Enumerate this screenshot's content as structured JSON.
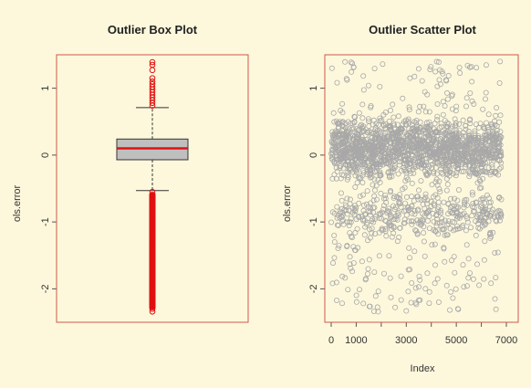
{
  "colors": {
    "background": "#fdf8dc",
    "frame": "#d0584a",
    "box_fill": "#bfbfbf",
    "median": "#e01010",
    "outlier": "#e01010",
    "scatter_point": "#a8a8a8"
  },
  "chart_data": [
    {
      "type": "box",
      "title": "Outlier Box Plot",
      "xlabel": "",
      "ylabel": "ols.error",
      "ylim": [
        -2.5,
        1.5
      ],
      "yticks": [
        -2,
        -1,
        0,
        1
      ],
      "ytick_labels": [
        "-2",
        "-1",
        "0",
        "1"
      ],
      "summary": {
        "min_whisker": -0.53,
        "q1": -0.07,
        "median": 0.1,
        "q3": 0.24,
        "max_whisker": 0.71
      },
      "outliers_low": [
        -0.55,
        -0.6,
        -0.65,
        -0.7,
        -0.75,
        -0.8,
        -0.85,
        -0.9,
        -0.95,
        -1.0,
        -1.05,
        -1.1,
        -1.15,
        -1.2,
        -1.25,
        -1.3,
        -1.35,
        -1.4,
        -1.45,
        -1.5,
        -1.55,
        -1.6,
        -1.65,
        -1.7,
        -1.75,
        -1.8,
        -1.85,
        -1.9,
        -1.95,
        -2.0,
        -2.05,
        -2.1,
        -2.15,
        -2.2,
        -2.25,
        -2.3,
        -2.34
      ],
      "outliers_high": [
        0.74,
        0.78,
        0.82,
        0.86,
        0.9,
        0.94,
        0.98,
        1.02,
        1.06,
        1.1,
        1.15,
        1.27,
        1.35,
        1.39
      ]
    },
    {
      "type": "scatter",
      "title": "Outlier Scatter Plot",
      "xlabel": "Index",
      "ylabel": "ols.error",
      "xlim": [
        0,
        7000
      ],
      "ylim": [
        -2.5,
        1.5
      ],
      "xticks": [
        0,
        1000,
        3000,
        5000,
        7000
      ],
      "xtick_labels": [
        "0",
        "1000",
        "3000",
        "5000",
        "7000"
      ],
      "xticks_minor": [
        2000,
        4000,
        6000
      ],
      "yticks": [
        -2,
        -1,
        0,
        1
      ],
      "ytick_labels": [
        "-2",
        "-1",
        "0",
        "1"
      ],
      "n_points": 6800,
      "distribution": {
        "core_band": {
          "center": 0.1,
          "spread": 0.22,
          "share": 0.74
        },
        "secondary_band": {
          "center": -0.88,
          "spread": 0.16,
          "share": 0.17
        },
        "low_tail": {
          "range": [
            -2.35,
            -1.1
          ],
          "share": 0.06
        },
        "high_tail": {
          "range": [
            0.6,
            1.4
          ],
          "share": 0.03
        }
      },
      "notable_points": [
        {
          "x": 4300,
          "y": 1.39
        },
        {
          "x": 6750,
          "y": 1.4
        },
        {
          "x": 900,
          "y": 1.31
        },
        {
          "x": 3150,
          "y": 1.15
        },
        {
          "x": 3000,
          "y": -2.33
        }
      ]
    }
  ]
}
